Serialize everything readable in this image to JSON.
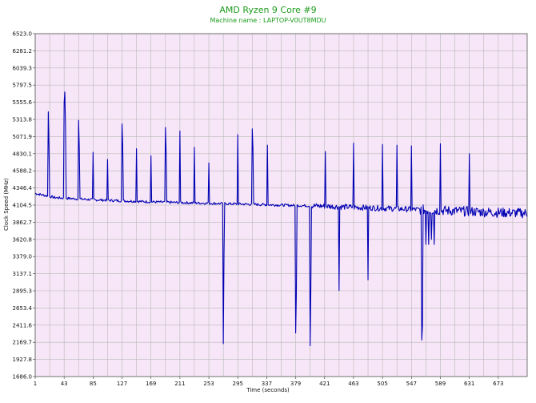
{
  "chart_data": {
    "type": "line",
    "title": "AMD Ryzen 9 Core #9",
    "subtitle": "Machine name : LAPTOP-V0UT8MDU",
    "xlabel": "Time (seconds)",
    "ylabel": "Clock Speed (MHz)",
    "xlim": [
      1,
      715
    ],
    "ylim": [
      1686.0,
      6523.0
    ],
    "x_ticks": [
      1,
      43,
      85,
      127,
      169,
      211,
      253,
      295,
      337,
      379,
      421,
      463,
      505,
      547,
      589,
      631,
      673
    ],
    "y_ticks": [
      1686.0,
      1927.8,
      2169.7,
      2411.6,
      2653.4,
      2895.3,
      3137.1,
      3379.0,
      3620.8,
      3862.7,
      4104.5,
      4346.4,
      4588.2,
      4830.1,
      5071.9,
      5313.8,
      5555.6,
      5797.5,
      6039.3,
      6281.2,
      6523.0
    ],
    "y_tick_labels": [
      "1686.0",
      "1927.8",
      "2169.7",
      "2411.6",
      "2653.4",
      "2895.3",
      "3137.1",
      "3379.0",
      "3620.8",
      "3862.7",
      "4104.5",
      "4346.4",
      "4588.2",
      "4830.1",
      "5071.9",
      "5313.8",
      "5555.6",
      "5797.5",
      "6039.3",
      "6281.2",
      "6523.0"
    ],
    "grid": true,
    "background_color": "#f7e6f7",
    "grid_color": "#b8b8b8",
    "line_color": "#0000b4",
    "series": [
      {
        "name": "Core #9",
        "baseline": [
          [
            1,
            4270
          ],
          [
            30,
            4210
          ],
          [
            85,
            4180
          ],
          [
            169,
            4150
          ],
          [
            253,
            4130
          ],
          [
            337,
            4110
          ],
          [
            421,
            4090
          ],
          [
            505,
            4060
          ],
          [
            589,
            4030
          ],
          [
            673,
            4000
          ],
          [
            715,
            3990
          ]
        ],
        "spikes": [
          [
            20,
            5420
          ],
          [
            21,
            4950
          ],
          [
            43,
            5550
          ],
          [
            44,
            5700
          ],
          [
            45,
            5200
          ],
          [
            64,
            5300
          ],
          [
            65,
            4900
          ],
          [
            85,
            4850
          ],
          [
            106,
            4750
          ],
          [
            127,
            5250
          ],
          [
            128,
            4950
          ],
          [
            148,
            4900
          ],
          [
            169,
            4800
          ],
          [
            190,
            5200
          ],
          [
            191,
            4850
          ],
          [
            211,
            5150
          ],
          [
            232,
            4920
          ],
          [
            253,
            4700
          ],
          [
            274,
            5080
          ],
          [
            295,
            5100
          ],
          [
            316,
            5180
          ],
          [
            317,
            4900
          ],
          [
            338,
            4950
          ],
          [
            400,
            4930
          ],
          [
            422,
            4860
          ],
          [
            442,
            4790
          ],
          [
            463,
            4980
          ],
          [
            484,
            4860
          ],
          [
            505,
            4960
          ],
          [
            526,
            4950
          ],
          [
            547,
            4940
          ],
          [
            568,
            4800
          ],
          [
            589,
            4970
          ],
          [
            631,
            4830
          ]
        ],
        "dips": [
          [
            274,
            2150
          ],
          [
            275,
            3400
          ],
          [
            379,
            2300
          ],
          [
            380,
            2850
          ],
          [
            400,
            2120
          ],
          [
            401,
            2900
          ],
          [
            442,
            2900
          ],
          [
            484,
            3050
          ],
          [
            562,
            2200
          ],
          [
            563,
            2400
          ],
          [
            568,
            3550
          ],
          [
            572,
            3550
          ],
          [
            576,
            3620
          ],
          [
            580,
            3550
          ]
        ]
      }
    ]
  }
}
